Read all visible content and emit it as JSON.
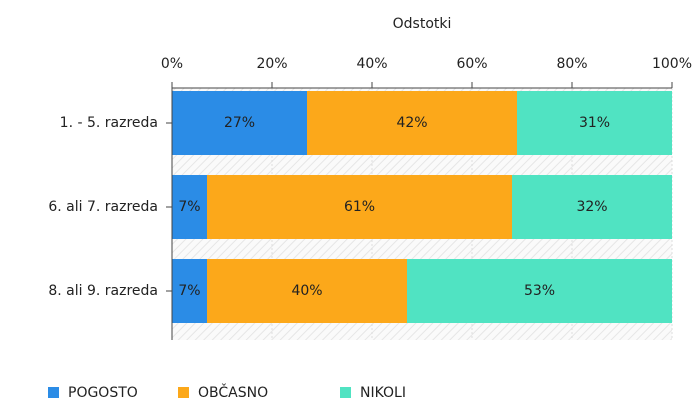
{
  "chart_data": {
    "type": "stacked-barh",
    "title": "Odstotki",
    "categories": [
      "1. - 5. razreda",
      "6. ali 7. razreda",
      "8. ali 9. razreda"
    ],
    "series": [
      {
        "name": "POGOSTO",
        "color": "#2b8ce6",
        "values": [
          27,
          7,
          7
        ],
        "value_labels": [
          "27%",
          "7%",
          "7%"
        ]
      },
      {
        "name": "OBČASNO",
        "color": "#fca81a",
        "values": [
          42,
          61,
          40
        ],
        "value_labels": [
          "42%",
          "61%",
          "40%"
        ]
      },
      {
        "name": "NIKOLI",
        "color": "#50e3c2",
        "values": [
          31,
          32,
          53
        ],
        "value_labels": [
          "31%",
          "32%",
          "53%"
        ]
      }
    ],
    "xlim": [
      0,
      100
    ],
    "xticks": [
      {
        "value": 0,
        "label": "0%"
      },
      {
        "value": 20,
        "label": "20%"
      },
      {
        "value": 40,
        "label": "40%"
      },
      {
        "value": 60,
        "label": "60%"
      },
      {
        "value": 80,
        "label": "80%"
      },
      {
        "value": 100,
        "label": "100%"
      }
    ],
    "grid": true,
    "legend": "bottom"
  }
}
